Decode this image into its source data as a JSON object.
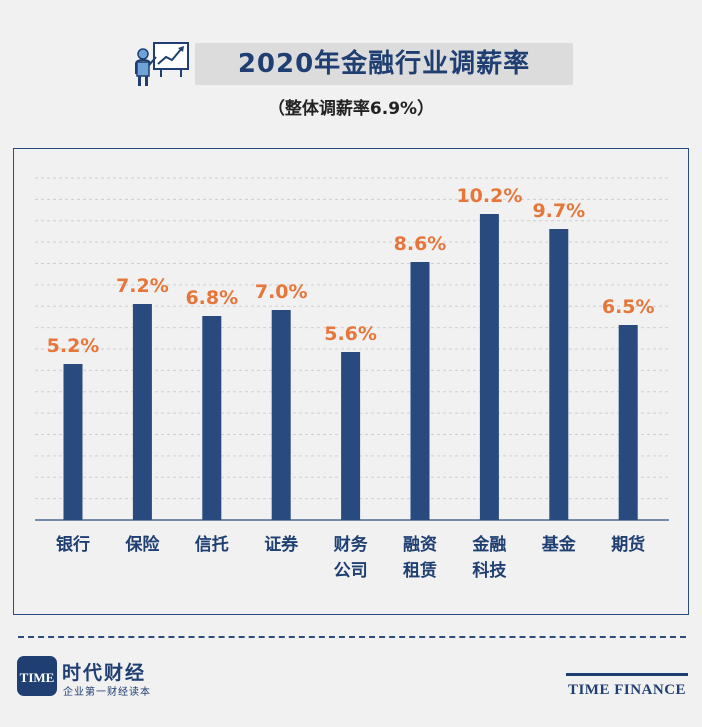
{
  "header": {
    "title": "2020年金融行业调薪率",
    "subtitle": "（整体调薪率6.9%）",
    "icon": "presentation-icon"
  },
  "chart_data": {
    "type": "bar",
    "title": "2020年金融行业调薪率",
    "subtitle": "（整体调薪率6.9%）",
    "xlabel": "",
    "ylabel": "",
    "ylim": [
      0,
      11.4
    ],
    "grid": true,
    "bar_color": "#284a7e",
    "label_color": "#e6763a",
    "categories": [
      [
        "银行"
      ],
      [
        "保险"
      ],
      [
        "信托"
      ],
      [
        "证券"
      ],
      [
        "财务",
        "公司"
      ],
      [
        "融资",
        "租赁"
      ],
      [
        "金融",
        "科技"
      ],
      [
        "基金"
      ],
      [
        "期货"
      ]
    ],
    "values": [
      5.2,
      7.2,
      6.8,
      7.0,
      5.6,
      8.6,
      10.2,
      9.7,
      6.5
    ],
    "value_labels": [
      "5.2%",
      "7.2%",
      "6.8%",
      "7.0%",
      "5.6%",
      "8.6%",
      "10.2%",
      "9.7%",
      "6.5%"
    ]
  },
  "footer": {
    "brand_cn": "时代财经",
    "brand_slogan": "企业第一财经读本",
    "brand_en": "TIME FINANCE",
    "logo_badge": "TIME"
  }
}
